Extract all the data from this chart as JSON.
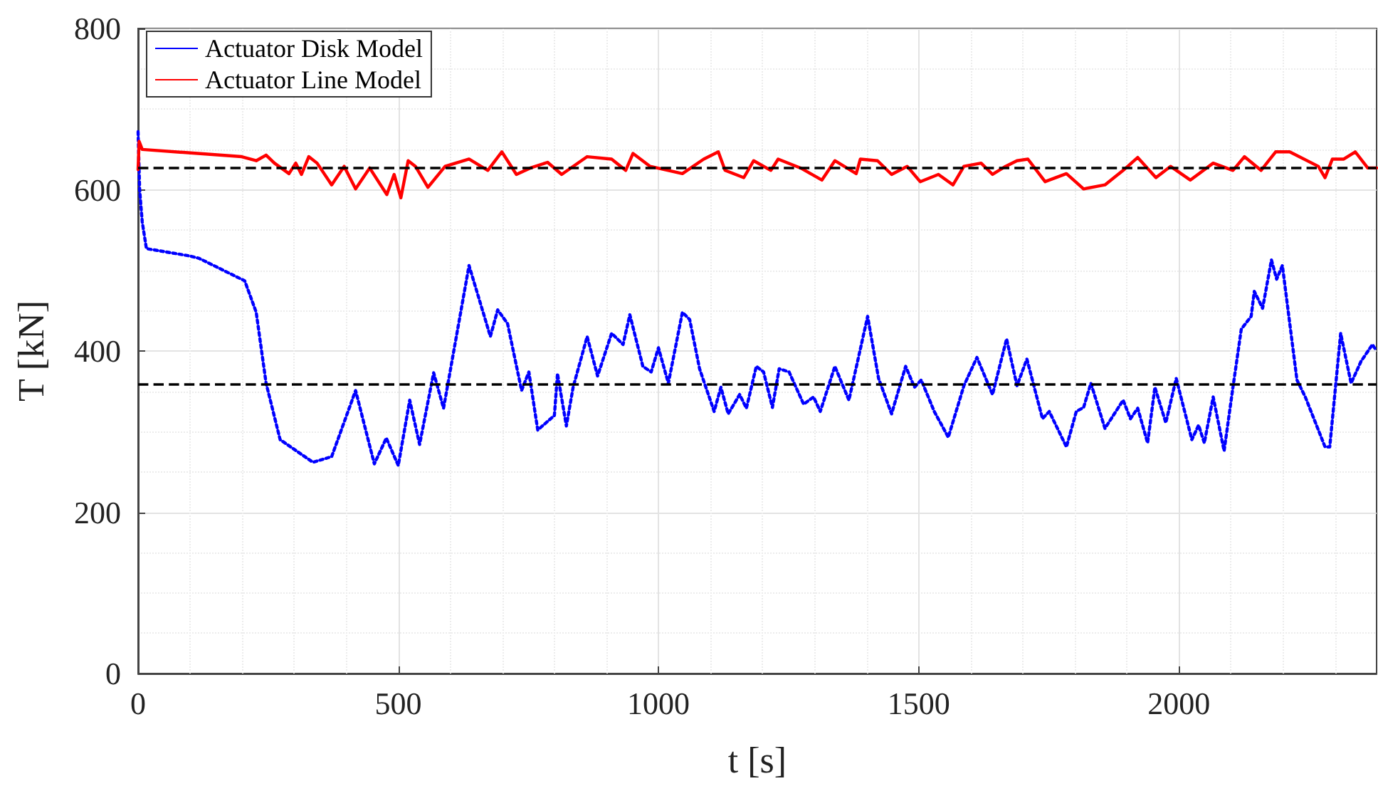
{
  "chart_data": {
    "type": "line",
    "xlabel": "t [s]",
    "ylabel": "T [kN]",
    "xlim": [
      0,
      2380
    ],
    "ylim": [
      0,
      800
    ],
    "xticks": [
      0,
      500,
      1000,
      1500,
      2000
    ],
    "yticks": [
      0,
      200,
      400,
      600,
      800
    ],
    "grid": true,
    "legend": "top left",
    "marker": "none",
    "series": [
      {
        "name": "Actuator Disk Model",
        "color": "#0000ff",
        "line_style": "dotted",
        "x": [
          0,
          3,
          8,
          16,
          98,
          117,
          205,
          227,
          246,
          273,
          336,
          372,
          418,
          454,
          477,
          500,
          522,
          541,
          568,
          587,
          636,
          677,
          691,
          710,
          737,
          751,
          768,
          800,
          806,
          823,
          836,
          863,
          883,
          910,
          932,
          945,
          970,
          986,
          1000,
          1019,
          1046,
          1060,
          1079,
          1107,
          1120,
          1134,
          1156,
          1169,
          1188,
          1202,
          1219,
          1232,
          1251,
          1279,
          1298,
          1311,
          1339,
          1366,
          1402,
          1423,
          1448,
          1475,
          1492,
          1505,
          1530,
          1557,
          1587,
          1612,
          1642,
          1669,
          1689,
          1708,
          1738,
          1751,
          1784,
          1803,
          1817,
          1831,
          1858,
          1893,
          1907,
          1921,
          1940,
          1954,
          1975,
          1995,
          2025,
          2038,
          2049,
          2066,
          2087,
          2104,
          2120,
          2139,
          2145,
          2161,
          2178,
          2188,
          2199,
          2227,
          2243,
          2281,
          2290,
          2311,
          2331,
          2350,
          2372,
          2380
        ],
        "values": [
          672,
          600,
          560,
          527,
          518,
          515,
          487,
          448,
          360,
          290,
          262,
          269,
          351,
          260,
          292,
          258,
          339,
          284,
          373,
          329,
          506,
          418,
          451,
          434,
          351,
          374,
          302,
          320,
          372,
          307,
          355,
          418,
          369,
          422,
          408,
          445,
          381,
          374,
          404,
          360,
          448,
          439,
          378,
          325,
          355,
          322,
          346,
          329,
          381,
          374,
          330,
          378,
          374,
          334,
          343,
          325,
          381,
          339,
          443,
          366,
          322,
          381,
          355,
          364,
          325,
          293,
          357,
          392,
          346,
          415,
          357,
          390,
          316,
          325,
          281,
          325,
          330,
          360,
          304,
          339,
          316,
          329,
          286,
          355,
          311,
          366,
          290,
          308,
          286,
          343,
          276,
          355,
          427,
          443,
          474,
          453,
          513,
          489,
          506,
          364,
          343,
          281,
          281,
          422,
          360,
          387,
          408,
          400
        ]
      },
      {
        "name": "Actuator Line Model",
        "color": "#ff0000",
        "line_style": "solid",
        "x": [
          0,
          2,
          8,
          199,
          227,
          246,
          262,
          290,
          303,
          314,
          328,
          344,
          372,
          396,
          418,
          445,
          478,
          492,
          505,
          519,
          533,
          557,
          590,
          636,
          672,
          699,
          727,
          754,
          787,
          814,
          863,
          910,
          937,
          951,
          984,
          1046,
          1087,
          1115,
          1128,
          1164,
          1183,
          1216,
          1230,
          1273,
          1314,
          1339,
          1380,
          1388,
          1421,
          1448,
          1478,
          1503,
          1538,
          1566,
          1587,
          1620,
          1642,
          1667,
          1689,
          1710,
          1743,
          1784,
          1817,
          1858,
          1893,
          1921,
          1956,
          1984,
          2022,
          2066,
          2104,
          2126,
          2158,
          2186,
          2213,
          2268,
          2281,
          2295,
          2317,
          2339,
          2363,
          2380
        ],
        "values": [
          625,
          660,
          650,
          641,
          636,
          643,
          633,
          620,
          633,
          619,
          641,
          633,
          606,
          629,
          601,
          627,
          594,
          619,
          590,
          636,
          629,
          603,
          629,
          638,
          624,
          647,
          619,
          627,
          634,
          619,
          641,
          638,
          624,
          645,
          629,
          620,
          638,
          647,
          624,
          615,
          636,
          624,
          638,
          627,
          612,
          636,
          620,
          638,
          636,
          619,
          629,
          610,
          619,
          606,
          629,
          633,
          619,
          629,
          636,
          638,
          610,
          620,
          601,
          606,
          624,
          640,
          615,
          629,
          612,
          633,
          624,
          641,
          624,
          647,
          647,
          629,
          615,
          638,
          638,
          647,
          627,
          627
        ]
      }
    ],
    "ref_lines": [
      {
        "axis": "y",
        "value": 627,
        "color": "#000000",
        "line_style": "dashed"
      },
      {
        "axis": "y",
        "value": 359,
        "color": "#000000",
        "line_style": "dashed"
      }
    ]
  }
}
